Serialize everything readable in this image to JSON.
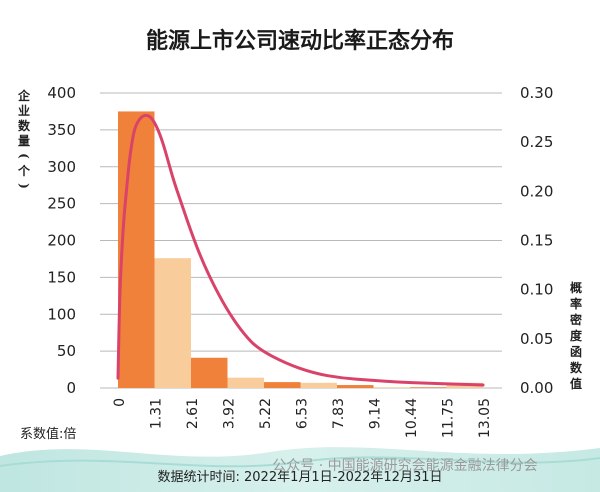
{
  "chart_data": {
    "type": "bar",
    "title": "能源上市公司速动比率正态分布",
    "x_ticks": [
      "0",
      "1.31",
      "2.61",
      "3.92",
      "5.22",
      "6.53",
      "7.83",
      "9.14",
      "10.44",
      "11.75",
      "13.05"
    ],
    "values": [
      375,
      176,
      41,
      14,
      8,
      7,
      4,
      1,
      1,
      7
    ],
    "y_left": {
      "label": "企业数量(个)",
      "ticks": [
        "0",
        "50",
        "100",
        "150",
        "200",
        "250",
        "300",
        "350",
        "400"
      ],
      "range": [
        0,
        400
      ]
    },
    "y_right": {
      "label": "概率密度函数值",
      "ticks": [
        "0.00",
        "0.05",
        "0.10",
        "0.15",
        "0.20",
        "0.25",
        "0.30"
      ],
      "range": [
        0,
        0.3
      ]
    },
    "curve": {
      "x": [
        0,
        0.05,
        0.1,
        0.2,
        0.3,
        0.4,
        0.5,
        0.6,
        0.8,
        1.0,
        1.2,
        1.4,
        1.6,
        1.8,
        2.0,
        2.3,
        2.6,
        3.0,
        3.5,
        4.0,
        4.5,
        5.0,
        6.0,
        7.0,
        8.0,
        9.0,
        10.0,
        11.0,
        12.0,
        13.05
      ],
      "y": [
        0.01,
        0.08,
        0.12,
        0.17,
        0.2,
        0.23,
        0.25,
        0.265,
        0.275,
        0.278,
        0.275,
        0.265,
        0.25,
        0.23,
        0.21,
        0.185,
        0.16,
        0.13,
        0.1,
        0.075,
        0.055,
        0.04,
        0.025,
        0.015,
        0.01,
        0.008,
        0.006,
        0.005,
        0.004,
        0.003
      ]
    },
    "colors": {
      "dark": "#f0813a",
      "light": "#f9cc9b",
      "curve": "#d9436a",
      "grid": "#b9b9b9"
    },
    "grid": true,
    "x_unit": "系数值:倍",
    "footnote": "数据统计时间: 2022年1月1日-2022年12月31日"
  },
  "watermark": "公众号 · 中国能源研究会能源金融法律分会"
}
